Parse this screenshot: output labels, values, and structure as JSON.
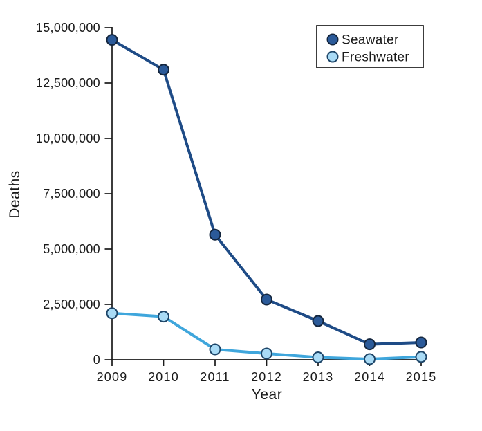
{
  "figure": {
    "background": "#ffffff",
    "ink_color": "#1a1a1a"
  },
  "chart_data": {
    "type": "line",
    "title": "",
    "xlabel": "Year",
    "ylabel": "Deaths",
    "categories": [
      "2009",
      "2010",
      "2011",
      "2012",
      "2013",
      "2014",
      "2015"
    ],
    "series": [
      {
        "name": "Seawater",
        "values": [
          14450000,
          13100000,
          5650000,
          2720000,
          1750000,
          700000,
          780000
        ],
        "line_color": "#1E4B86",
        "marker_fill": "#2B5A99",
        "marker_stroke": "#14263E"
      },
      {
        "name": "Freshwater",
        "values": [
          2100000,
          1950000,
          470000,
          280000,
          110000,
          30000,
          130000
        ],
        "line_color": "#3FA6DC",
        "marker_fill": "#A9DBF6",
        "marker_stroke": "#1D4568"
      }
    ],
    "ylim": [
      0,
      15000000
    ],
    "yticks": [
      0,
      2500000,
      5000000,
      7500000,
      10000000,
      12500000,
      15000000
    ],
    "ytick_labels": [
      "0",
      "2,500,000",
      "5,000,000",
      "7,500,000",
      "10,000,000",
      "12,500,000",
      "15,000,000"
    ],
    "grid": false,
    "legend": {
      "position": "top-right",
      "border_color": "#1a1a1a",
      "background": "#ffffff",
      "entries": [
        "Seawater",
        "Freshwater"
      ]
    }
  }
}
